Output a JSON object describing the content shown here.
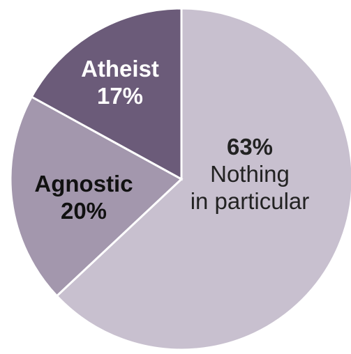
{
  "chart_data": {
    "type": "pie",
    "start_angle_deg": 0,
    "direction": "clockwise",
    "slices": [
      {
        "label": "Nothing in particular",
        "value": 63,
        "pct_text": "63%",
        "label_lines": [
          "Nothing",
          "in particular"
        ],
        "color": "#c8c0cf",
        "text_color": "#222222"
      },
      {
        "label": "Agnostic",
        "value": 20,
        "pct_text": "20%",
        "label_lines": [
          "Agnostic"
        ],
        "color": "#a397ad",
        "text_color": "#111111"
      },
      {
        "label": "Atheist",
        "value": 17,
        "pct_text": "17%",
        "label_lines": [
          "Atheist"
        ],
        "color": "#6b5b79",
        "text_color": "#ffffff"
      }
    ]
  }
}
